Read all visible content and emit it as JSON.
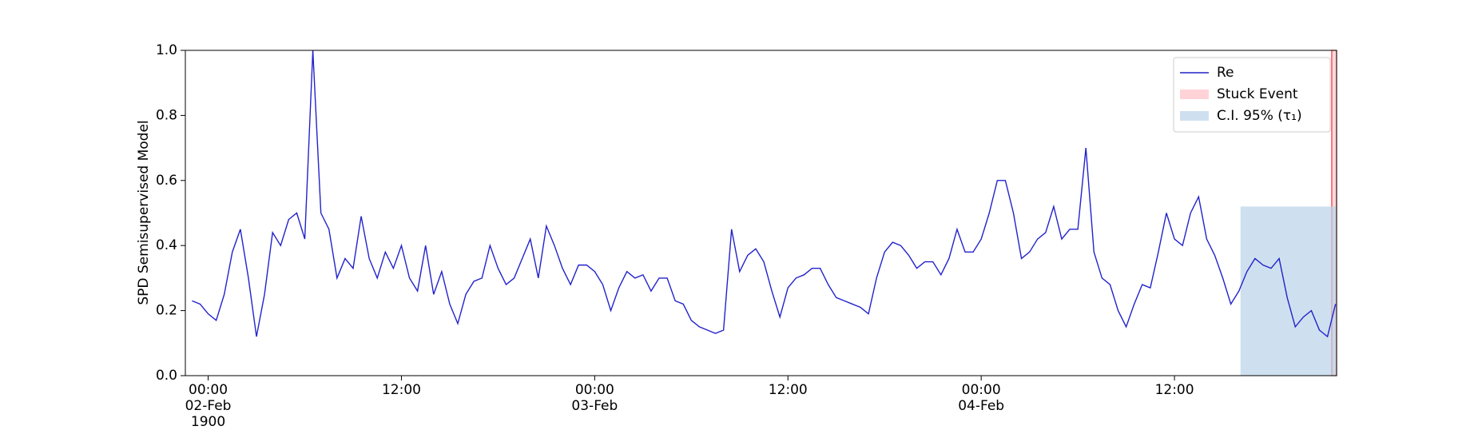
{
  "chart_data": {
    "type": "line",
    "y_label": "SPD Semisupervised Model",
    "xlim": [
      "1900-02-01 22:35",
      "1900-02-04 22:04"
    ],
    "xticks": [
      {
        "value": "1900-02-02 00:00",
        "label": "00:00\n02-Feb\n1900"
      },
      {
        "value": "1900-02-02 12:00",
        "label": "12:00"
      },
      {
        "value": "1900-02-03 00:00",
        "label": "00:00\n03-Feb"
      },
      {
        "value": "1900-02-03 12:00",
        "label": "12:00"
      },
      {
        "value": "1900-02-04 00:00",
        "label": "00:00\n04-Feb"
      },
      {
        "value": "1900-02-04 12:00",
        "label": "12:00"
      }
    ],
    "ylim": [
      0,
      1
    ],
    "yticks": [
      {
        "value": 0,
        "label": "0.0"
      },
      {
        "value": 0.2,
        "label": "0.2"
      },
      {
        "value": 0.4,
        "label": "0.4"
      },
      {
        "value": 0.6,
        "label": "0.6"
      },
      {
        "value": 0.8,
        "label": "0.8"
      },
      {
        "value": 1,
        "label": "1.0"
      }
    ],
    "legend": "upper right",
    "x": [
      "1900-02-01 23:00",
      "1900-02-01 23:30",
      "1900-02-02 00:00",
      "1900-02-02 00:30",
      "1900-02-02 01:00",
      "1900-02-02 01:30",
      "1900-02-02 02:00",
      "1900-02-02 02:30",
      "1900-02-02 03:00",
      "1900-02-02 03:30",
      "1900-02-02 04:00",
      "1900-02-02 04:30",
      "1900-02-02 05:00",
      "1900-02-02 05:30",
      "1900-02-02 06:00",
      "1900-02-02 06:30",
      "1900-02-02 07:00",
      "1900-02-02 07:30",
      "1900-02-02 08:00",
      "1900-02-02 08:30",
      "1900-02-02 09:00",
      "1900-02-02 09:30",
      "1900-02-02 10:00",
      "1900-02-02 10:30",
      "1900-02-02 11:00",
      "1900-02-02 11:30",
      "1900-02-02 12:00",
      "1900-02-02 12:30",
      "1900-02-02 13:00",
      "1900-02-02 13:30",
      "1900-02-02 14:00",
      "1900-02-02 14:30",
      "1900-02-02 15:00",
      "1900-02-02 15:30",
      "1900-02-02 16:00",
      "1900-02-02 16:30",
      "1900-02-02 17:00",
      "1900-02-02 17:30",
      "1900-02-02 18:00",
      "1900-02-02 18:30",
      "1900-02-02 19:00",
      "1900-02-02 19:30",
      "1900-02-02 20:00",
      "1900-02-02 20:30",
      "1900-02-02 21:00",
      "1900-02-02 21:30",
      "1900-02-02 22:00",
      "1900-02-02 22:30",
      "1900-02-02 23:00",
      "1900-02-02 23:30",
      "1900-02-03 00:00",
      "1900-02-03 00:30",
      "1900-02-03 01:00",
      "1900-02-03 01:30",
      "1900-02-03 02:00",
      "1900-02-03 02:30",
      "1900-02-03 03:00",
      "1900-02-03 03:30",
      "1900-02-03 04:00",
      "1900-02-03 04:30",
      "1900-02-03 05:00",
      "1900-02-03 05:30",
      "1900-02-03 06:00",
      "1900-02-03 06:30",
      "1900-02-03 07:00",
      "1900-02-03 07:30",
      "1900-02-03 08:00",
      "1900-02-03 08:30",
      "1900-02-03 09:00",
      "1900-02-03 09:30",
      "1900-02-03 10:00",
      "1900-02-03 10:30",
      "1900-02-03 11:00",
      "1900-02-03 11:30",
      "1900-02-03 12:00",
      "1900-02-03 12:30",
      "1900-02-03 13:00",
      "1900-02-03 13:30",
      "1900-02-03 14:00",
      "1900-02-03 14:30",
      "1900-02-03 15:00",
      "1900-02-03 15:30",
      "1900-02-03 16:00",
      "1900-02-03 16:30",
      "1900-02-03 17:00",
      "1900-02-03 17:30",
      "1900-02-03 18:00",
      "1900-02-03 18:30",
      "1900-02-03 19:00",
      "1900-02-03 19:30",
      "1900-02-03 20:00",
      "1900-02-03 20:30",
      "1900-02-03 21:00",
      "1900-02-03 21:30",
      "1900-02-03 22:00",
      "1900-02-03 22:30",
      "1900-02-03 23:00",
      "1900-02-03 23:30",
      "1900-02-04 00:00",
      "1900-02-04 00:30",
      "1900-02-04 01:00",
      "1900-02-04 01:30",
      "1900-02-04 02:00",
      "1900-02-04 02:30",
      "1900-02-04 03:00",
      "1900-02-04 03:30",
      "1900-02-04 04:00",
      "1900-02-04 04:30",
      "1900-02-04 05:00",
      "1900-02-04 05:30",
      "1900-02-04 06:00",
      "1900-02-04 06:30",
      "1900-02-04 07:00",
      "1900-02-04 07:30",
      "1900-02-04 08:00",
      "1900-02-04 08:30",
      "1900-02-04 09:00",
      "1900-02-04 09:30",
      "1900-02-04 10:00",
      "1900-02-04 10:30",
      "1900-02-04 11:00",
      "1900-02-04 11:30",
      "1900-02-04 12:00",
      "1900-02-04 12:30",
      "1900-02-04 13:00",
      "1900-02-04 13:30",
      "1900-02-04 14:00",
      "1900-02-04 14:30",
      "1900-02-04 15:00",
      "1900-02-04 15:30",
      "1900-02-04 16:00",
      "1900-02-04 16:30",
      "1900-02-04 17:00",
      "1900-02-04 17:30",
      "1900-02-04 18:00",
      "1900-02-04 18:30",
      "1900-02-04 19:00",
      "1900-02-04 19:30",
      "1900-02-04 20:00",
      "1900-02-04 20:30",
      "1900-02-04 21:00",
      "1900-02-04 21:30",
      "1900-02-04 22:00"
    ],
    "series": [
      {
        "name": "Re",
        "color": "#2222cc",
        "values": [
          0.23,
          0.22,
          0.19,
          0.17,
          0.25,
          0.38,
          0.45,
          0.3,
          0.12,
          0.25,
          0.44,
          0.4,
          0.48,
          0.5,
          0.42,
          1.0,
          0.5,
          0.45,
          0.3,
          0.36,
          0.33,
          0.49,
          0.36,
          0.3,
          0.38,
          0.33,
          0.4,
          0.3,
          0.26,
          0.4,
          0.25,
          0.32,
          0.22,
          0.16,
          0.25,
          0.29,
          0.3,
          0.4,
          0.33,
          0.28,
          0.3,
          0.36,
          0.42,
          0.3,
          0.46,
          0.4,
          0.33,
          0.28,
          0.34,
          0.34,
          0.32,
          0.28,
          0.2,
          0.27,
          0.32,
          0.3,
          0.31,
          0.26,
          0.3,
          0.3,
          0.23,
          0.22,
          0.17,
          0.15,
          0.14,
          0.13,
          0.14,
          0.45,
          0.32,
          0.37,
          0.39,
          0.35,
          0.26,
          0.18,
          0.27,
          0.3,
          0.31,
          0.33,
          0.33,
          0.28,
          0.24,
          0.23,
          0.22,
          0.21,
          0.19,
          0.3,
          0.38,
          0.41,
          0.4,
          0.37,
          0.33,
          0.35,
          0.35,
          0.31,
          0.36,
          0.45,
          0.38,
          0.38,
          0.42,
          0.5,
          0.6,
          0.6,
          0.5,
          0.36,
          0.38,
          0.42,
          0.44,
          0.52,
          0.42,
          0.45,
          0.45,
          0.7,
          0.38,
          0.3,
          0.28,
          0.2,
          0.15,
          0.22,
          0.28,
          0.27,
          0.38,
          0.5,
          0.42,
          0.4,
          0.5,
          0.55,
          0.42,
          0.37,
          0.3,
          0.22,
          0.26,
          0.32,
          0.36,
          0.34,
          0.33,
          0.36,
          0.24,
          0.15,
          0.18,
          0.2,
          0.14,
          0.12,
          0.22
        ]
      }
    ],
    "spans": [
      {
        "name": "Stuck Event",
        "color": "#ffc0c8",
        "edge": "#ee3333",
        "start": "1900-02-04 21:46",
        "end": "1900-02-04 22:04",
        "ymin": 0,
        "ymax": 1
      },
      {
        "name": "C.I. 95% (τ₁)",
        "color": "#b9d3e8",
        "start": "1900-02-04 16:06",
        "end": "1900-02-04 22:04",
        "ymin": 0,
        "ymax": 0.52
      }
    ]
  }
}
